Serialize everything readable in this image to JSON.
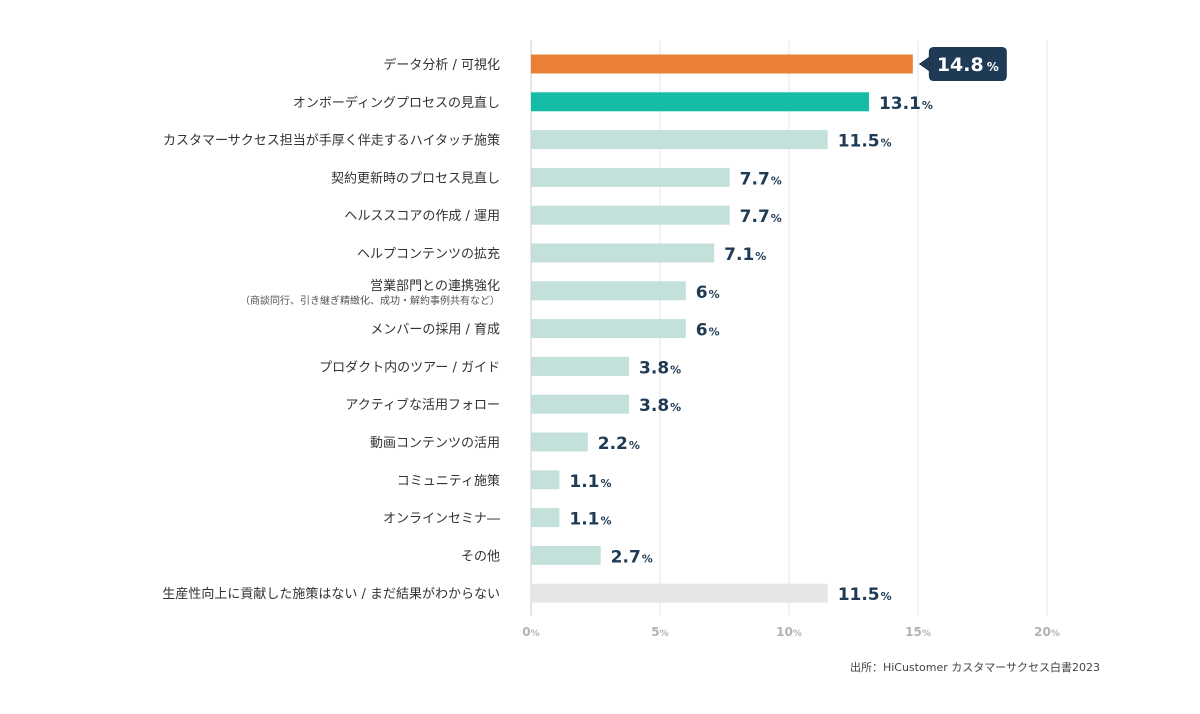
{
  "chart_data": {
    "type": "bar",
    "orientation": "horizontal",
    "value_unit": "%",
    "xlim": [
      0,
      20
    ],
    "ticks": [
      0,
      5,
      10,
      15,
      20
    ],
    "grid": true,
    "categories": [
      {
        "label": "データ分析 / 可視化",
        "value": 14.8,
        "value_text": "14.8",
        "color": "#ea8036",
        "highlight": true
      },
      {
        "label": "オンボーディングプロセスの見直し",
        "value": 13.1,
        "value_text": "13.1",
        "color": "#14bca6"
      },
      {
        "label": "カスタマーサクセス担当が手厚く伴走するハイタッチ施策",
        "value": 11.5,
        "value_text": "11.5",
        "color": "#c3e0da"
      },
      {
        "label": "契約更新時のプロセス見直し",
        "value": 7.7,
        "value_text": "7.7",
        "color": "#c3e0da"
      },
      {
        "label": "ヘルススコアの作成 / 運用",
        "value": 7.7,
        "value_text": "7.7",
        "color": "#c3e0da"
      },
      {
        "label": "ヘルプコンテンツの拡充",
        "value": 7.1,
        "value_text": "7.1",
        "color": "#c3e0da"
      },
      {
        "label": "営業部門との連携強化",
        "sublabel": "（商談同行、引き継ぎ精緻化、成功・解約事例共有など）",
        "value": 6,
        "value_text": "6",
        "color": "#c3e0da"
      },
      {
        "label": "メンバーの採用 / 育成",
        "value": 6,
        "value_text": "6",
        "color": "#c3e0da"
      },
      {
        "label": "プロダクト内のツアー / ガイド",
        "value": 3.8,
        "value_text": "3.8",
        "color": "#c3e0da"
      },
      {
        "label": "アクティブな活用フォロー",
        "value": 3.8,
        "value_text": "3.8",
        "color": "#c3e0da"
      },
      {
        "label": "動画コンテンツの活用",
        "value": 2.2,
        "value_text": "2.2",
        "color": "#c3e0da"
      },
      {
        "label": "コミュニティ施策",
        "value": 1.1,
        "value_text": "1.1",
        "color": "#c3e0da"
      },
      {
        "label": "オンラインセミナ―",
        "value": 1.1,
        "value_text": "1.1",
        "color": "#c3e0da"
      },
      {
        "label": "その他",
        "value": 2.7,
        "value_text": "2.7",
        "color": "#c3e0da"
      },
      {
        "label": "生産性向上に貢献した施策はない / まだ結果がわからない",
        "value": 11.5,
        "value_text": "11.5",
        "color": "#e6e6e6"
      }
    ],
    "callout_color": "#1f3a55",
    "grid_color": "#e4e4e4"
  },
  "source": "出所：HiCustomer カスタマーサクセス白書2023"
}
